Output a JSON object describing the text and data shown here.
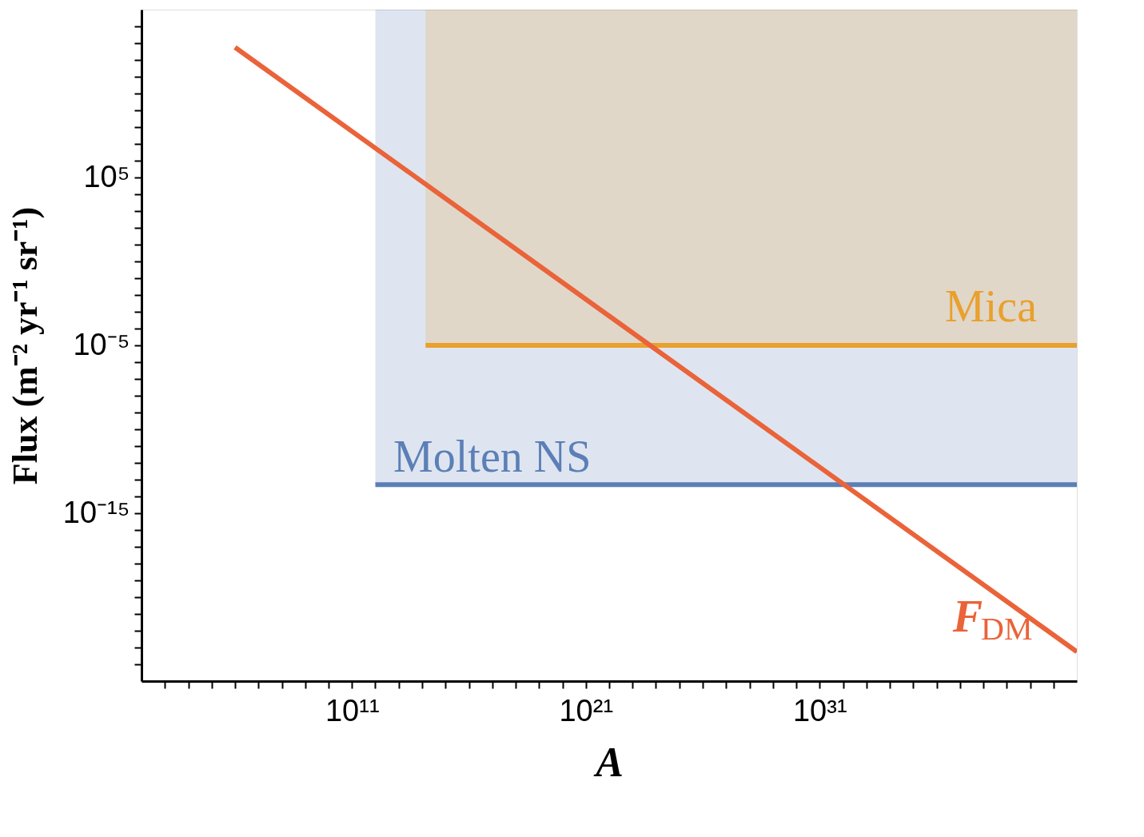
{
  "chart_data": {
    "type": "line",
    "xlabel": "A",
    "ylabel": "Flux  (m⁻² yr⁻¹ sr⁻¹)",
    "log": "xy",
    "grid": false,
    "line_style": "solid",
    "xlim": [
      100.0,
      1e+42
    ],
    "ylim": [
      1e-25,
      1000000000000000.0
    ],
    "xticks": [
      {
        "value": 1000.0,
        "label": null
      },
      {
        "value": 10000.0,
        "label": null
      },
      {
        "value": 100000.0,
        "label": null
      },
      {
        "value": 1000000.0,
        "label": null
      },
      {
        "value": 10000000.0,
        "label": null
      },
      {
        "value": 100000000.0,
        "label": null
      },
      {
        "value": 1000000000.0,
        "label": null
      },
      {
        "value": 10000000000.0,
        "label": null
      },
      {
        "value": 100000000000.0,
        "label": "10¹¹"
      },
      {
        "value": 1000000000000.0,
        "label": null
      },
      {
        "value": 10000000000000.0,
        "label": null
      },
      {
        "value": 100000000000000.0,
        "label": null
      },
      {
        "value": 1000000000000000.0,
        "label": null
      },
      {
        "value": 1e+16,
        "label": null
      },
      {
        "value": 1e+17,
        "label": null
      },
      {
        "value": 1e+18,
        "label": null
      },
      {
        "value": 1e+19,
        "label": null
      },
      {
        "value": 1e+20,
        "label": null
      },
      {
        "value": 1e+21,
        "label": "10²¹"
      },
      {
        "value": 1e+22,
        "label": null
      },
      {
        "value": 1e+23,
        "label": null
      },
      {
        "value": 1e+24,
        "label": null
      },
      {
        "value": 1e+25,
        "label": null
      },
      {
        "value": 1e+26,
        "label": null
      },
      {
        "value": 1e+27,
        "label": null
      },
      {
        "value": 1e+28,
        "label": null
      },
      {
        "value": 1e+29,
        "label": null
      },
      {
        "value": 1e+30,
        "label": null
      },
      {
        "value": 1e+31,
        "label": "10³¹"
      },
      {
        "value": 1e+32,
        "label": null
      },
      {
        "value": 1e+33,
        "label": null
      },
      {
        "value": 1e+34,
        "label": null
      },
      {
        "value": 1e+35,
        "label": null
      },
      {
        "value": 1e+36,
        "label": null
      },
      {
        "value": 1e+37,
        "label": null
      },
      {
        "value": 1e+38,
        "label": null
      },
      {
        "value": 1e+39,
        "label": null
      },
      {
        "value": 1e+40,
        "label": null
      },
      {
        "value": 1e+41,
        "label": null
      }
    ],
    "yticks": [
      {
        "value": 1e-24,
        "label": null
      },
      {
        "value": 1e-23,
        "label": null
      },
      {
        "value": 1e-22,
        "label": null
      },
      {
        "value": 1e-21,
        "label": null
      },
      {
        "value": 1e-20,
        "label": null
      },
      {
        "value": 1e-19,
        "label": null
      },
      {
        "value": 1e-18,
        "label": null
      },
      {
        "value": 1e-17,
        "label": null
      },
      {
        "value": 1e-16,
        "label": null
      },
      {
        "value": 1e-15,
        "label": "10⁻¹⁵"
      },
      {
        "value": 1e-14,
        "label": null
      },
      {
        "value": 1e-13,
        "label": null
      },
      {
        "value": 1e-12,
        "label": null
      },
      {
        "value": 1e-11,
        "label": null
      },
      {
        "value": 1e-10,
        "label": null
      },
      {
        "value": 1e-09,
        "label": null
      },
      {
        "value": 1e-08,
        "label": null
      },
      {
        "value": 1e-07,
        "label": null
      },
      {
        "value": 1e-06,
        "label": null
      },
      {
        "value": 1e-05,
        "label": "10⁻⁵"
      },
      {
        "value": 0.0001,
        "label": null
      },
      {
        "value": 0.001,
        "label": null
      },
      {
        "value": 0.01,
        "label": null
      },
      {
        "value": 0.1,
        "label": null
      },
      {
        "value": 1,
        "label": null
      },
      {
        "value": 10,
        "label": null
      },
      {
        "value": 100,
        "label": null
      },
      {
        "value": 1000.0,
        "label": null
      },
      {
        "value": 10000.0,
        "label": null
      },
      {
        "value": 100000.0,
        "label": "10⁵"
      },
      {
        "value": 1000000.0,
        "label": null
      },
      {
        "value": 10000000.0,
        "label": null
      },
      {
        "value": 100000000.0,
        "label": null
      },
      {
        "value": 1000000000.0,
        "label": null
      },
      {
        "value": 10000000000.0,
        "label": null
      },
      {
        "value": 100000000000.0,
        "label": null
      },
      {
        "value": 1000000000000.0,
        "label": null
      },
      {
        "value": 10000000000000.0,
        "label": null
      },
      {
        "value": 100000000000000.0,
        "label": null
      }
    ],
    "series": [
      {
        "name": "Molten NS",
        "color": "#5b7fb6",
        "x": [
          1000000000000.0,
          1e+42
        ],
        "values": [
          5e-14,
          5e-14
        ],
        "lower": [
          5e-14,
          5e-14
        ],
        "upper": [
          1000000000000000.0,
          1000000000000000.0
        ]
      },
      {
        "name": "Mica",
        "color": "#e9a02c",
        "x": [
          140000000000000.0,
          1e+42
        ],
        "values": [
          1e-05,
          1e-05
        ],
        "lower": [
          1e-05,
          1e-05
        ],
        "upper": [
          1000000000000000.0,
          1000000000000000.0
        ]
      },
      {
        "name": "F$_{DM}$",
        "color": "#ea6339",
        "x": [
          1000000.0,
          1e+42
        ],
        "values": [
          5600000000000.0,
          5.6e-24
        ]
      }
    ]
  }
}
